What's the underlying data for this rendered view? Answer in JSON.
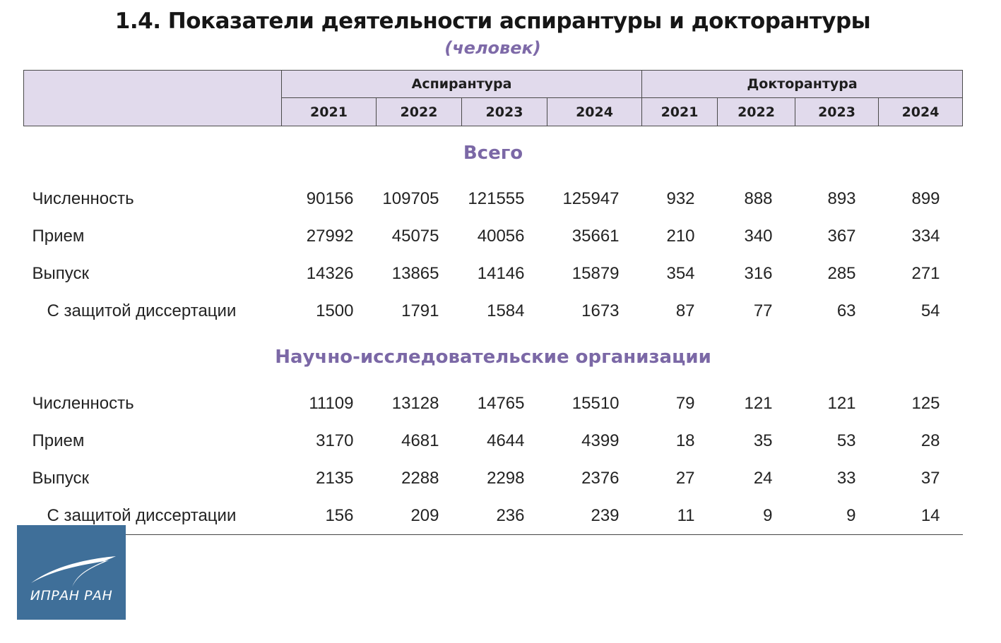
{
  "title": "1.4. Показатели деятельности аспирантуры и докторантуры",
  "subtitle": "(человек)",
  "groups": [
    "Аспирантура",
    "Докторантура"
  ],
  "years": [
    "2021",
    "2022",
    "2023",
    "2024",
    "2021",
    "2022",
    "2023",
    "2024"
  ],
  "sections": [
    {
      "title": "Всего",
      "rows": [
        {
          "label": "Численность",
          "values": [
            "90156",
            "109705",
            "121555",
            "125947",
            "932",
            "888",
            "893",
            "899"
          ]
        },
        {
          "label": "Прием",
          "values": [
            "27992",
            "45075",
            "40056",
            "35661",
            "210",
            "340",
            "367",
            "334"
          ]
        },
        {
          "label": "Выпуск",
          "values": [
            "14326",
            "13865",
            "14146",
            "15879",
            "354",
            "316",
            "285",
            "271"
          ]
        },
        {
          "label": "С защитой диссертации",
          "values": [
            "1500",
            "1791",
            "1584",
            "1673",
            "87",
            "77",
            "63",
            "54"
          ]
        }
      ]
    },
    {
      "title": "Научно-исследовательские организации",
      "rows": [
        {
          "label": "Численность",
          "values": [
            "11109",
            "13128",
            "14765",
            "15510",
            "79",
            "121",
            "121",
            "125"
          ]
        },
        {
          "label": "Прием",
          "values": [
            "3170",
            "4681",
            "4644",
            "4399",
            "18",
            "35",
            "53",
            "28"
          ]
        },
        {
          "label": "Выпуск",
          "values": [
            "2135",
            "2288",
            "2298",
            "2376",
            "27",
            "24",
            "33",
            "37"
          ]
        },
        {
          "label": "С защитой диссертации",
          "values": [
            "156",
            "209",
            "236",
            "239",
            "11",
            "9",
            "9",
            "14"
          ]
        }
      ]
    }
  ],
  "logo": {
    "text": "ИПРАН РАН",
    "background": "#3f6f99"
  },
  "colors": {
    "header_fill": "#e1daec",
    "section_title": "#7b68a6"
  }
}
